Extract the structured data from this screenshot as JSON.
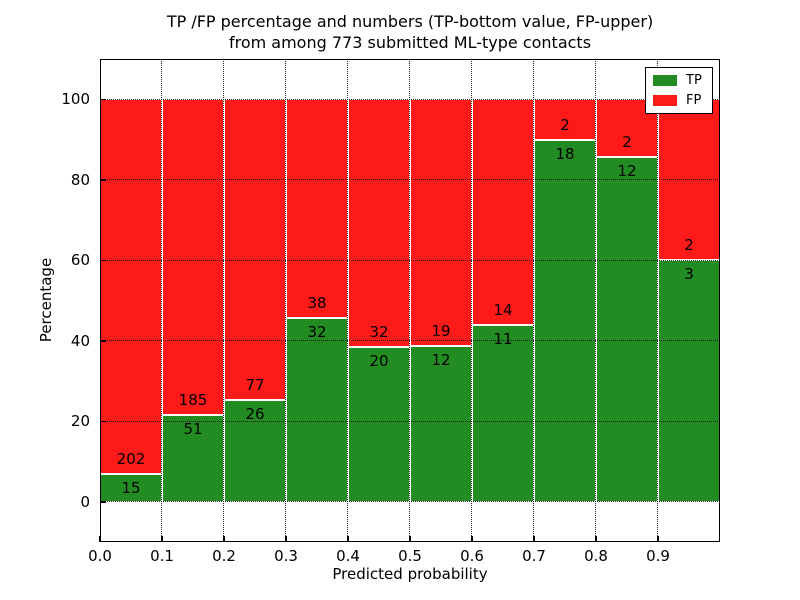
{
  "figure": {
    "title_line1": "TP /FP percentage and numbers (TP-bottom value, FP-upper)",
    "title_line2": "from among 773 submitted ML-type contacts",
    "background_color": "#ffffff"
  },
  "chart_data": {
    "type": "bar",
    "variant": "stacked-100-percent",
    "title": "TP /FP percentage and numbers (TP-bottom value, FP-upper)\nfrom among 773 submitted ML-type contacts",
    "xlabel": "Predicted probability",
    "ylabel": "Percentage",
    "total_contacts": 773,
    "annotation_rule": "TP count below boundary, FP count above boundary",
    "bins": [
      {
        "x0": 0.0,
        "x1": 0.1,
        "tp": 15,
        "fp": 202
      },
      {
        "x0": 0.1,
        "x1": 0.2,
        "tp": 51,
        "fp": 185
      },
      {
        "x0": 0.2,
        "x1": 0.3,
        "tp": 26,
        "fp": 77
      },
      {
        "x0": 0.3,
        "x1": 0.4,
        "tp": 32,
        "fp": 38
      },
      {
        "x0": 0.4,
        "x1": 0.5,
        "tp": 20,
        "fp": 32
      },
      {
        "x0": 0.5,
        "x1": 0.6,
        "tp": 12,
        "fp": 19
      },
      {
        "x0": 0.6,
        "x1": 0.7,
        "tp": 11,
        "fp": 14
      },
      {
        "x0": 0.7,
        "x1": 0.8,
        "tp": 18,
        "fp": 2
      },
      {
        "x0": 0.8,
        "x1": 0.9,
        "tp": 12,
        "fp": 2
      },
      {
        "x0": 0.9,
        "x1": 1.0,
        "tp": 3,
        "fp": 2
      }
    ],
    "series": [
      {
        "name": "TP",
        "color": "#228B22",
        "values": [
          15,
          51,
          26,
          32,
          20,
          12,
          11,
          18,
          12,
          3
        ]
      },
      {
        "name": "FP",
        "color": "#FF1A1A",
        "values": [
          202,
          185,
          77,
          38,
          32,
          19,
          14,
          2,
          2,
          2
        ]
      }
    ],
    "x_ticks": [
      "0.0",
      "0.1",
      "0.2",
      "0.3",
      "0.4",
      "0.5",
      "0.6",
      "0.7",
      "0.8",
      "0.9"
    ],
    "y_ticks": [
      "0",
      "20",
      "40",
      "60",
      "80",
      "100"
    ],
    "y_tick_values": [
      0,
      20,
      40,
      60,
      80,
      100
    ],
    "xlim": [
      0.0,
      1.0
    ],
    "ylim": [
      -10,
      110
    ],
    "grid": "dotted",
    "grid_color": "#111111",
    "bar_edge_color": "#ffffff",
    "legend_position": "upper right"
  },
  "legend": {
    "items": [
      {
        "label": "TP",
        "color": "#228B22"
      },
      {
        "label": "FP",
        "color": "#FF1A1A"
      }
    ]
  }
}
